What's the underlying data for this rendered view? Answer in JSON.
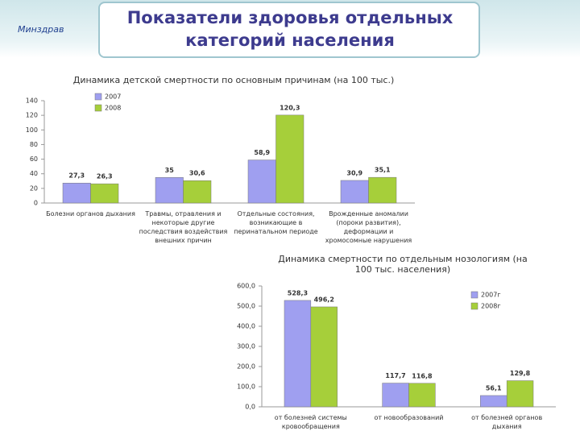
{
  "header": {
    "title": "Показатели здоровья отдельных категорий населения",
    "logo": "Минздрав"
  },
  "chart_data": [
    {
      "type": "bar",
      "title": "Динамика детской смертности по основным причинам (на 100 тыс.)",
      "categories": [
        "Болезни органов дыхания",
        "Травмы, отравления и некоторые другие последствия воздействия внешних причин",
        "Отдельные состояния, возникающие в перинатальном периоде",
        "Врожденные аномалии (пороки развития), деформации и хромосомные нарушения"
      ],
      "series": [
        {
          "name": "2007",
          "color": "#9f9ff0",
          "values": [
            27.3,
            35,
            58.9,
            30.9
          ],
          "value_labels": [
            "27,3",
            "35",
            "58,9",
            "30,9"
          ]
        },
        {
          "name": "2008",
          "color": "#a6cf3a",
          "values": [
            26.3,
            30.6,
            120.3,
            35.1
          ],
          "value_labels": [
            "26,3",
            "30,6",
            "120,3",
            "35,1"
          ]
        }
      ],
      "ylim": [
        0,
        140
      ],
      "yticks": [
        0,
        20,
        40,
        60,
        80,
        100,
        120,
        140
      ]
    },
    {
      "type": "bar",
      "title": "Динамика смертности по отдельным нозологиям (на 100 тыс. населения)",
      "categories": [
        "от болезней системы кровообращения",
        "от новообразований",
        "от болезней органов дыхания"
      ],
      "series": [
        {
          "name": "2007г",
          "color": "#9f9ff0",
          "values": [
            528.3,
            117.7,
            56.1
          ],
          "value_labels": [
            "528,3",
            "117,7",
            "56,1"
          ]
        },
        {
          "name": "2008г",
          "color": "#a6cf3a",
          "values": [
            496.2,
            116.8,
            129.8
          ],
          "value_labels": [
            "496,2",
            "116,8",
            "129,8"
          ]
        }
      ],
      "ylim": [
        0,
        600
      ],
      "yticks": [
        {
          "value": 0,
          "label": "0,0"
        },
        {
          "value": 100,
          "label": "100,0"
        },
        {
          "value": 200,
          "label": "200,0"
        },
        {
          "value": 300,
          "label": "300,0"
        },
        {
          "value": 400,
          "label": "400,0"
        },
        {
          "value": 500,
          "label": "500,0"
        },
        {
          "value": 600,
          "label": "600,0"
        }
      ]
    }
  ]
}
